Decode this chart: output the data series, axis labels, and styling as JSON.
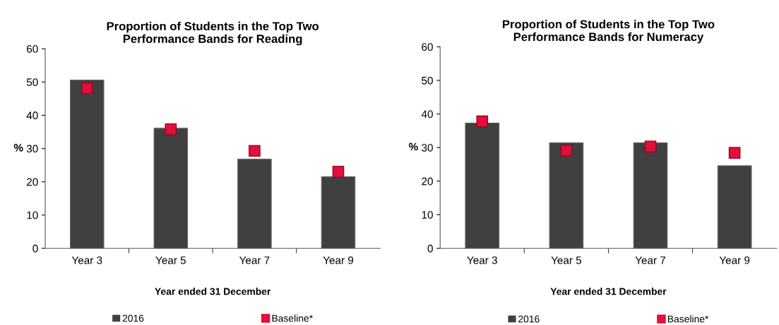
{
  "chart_data": [
    {
      "type": "bar",
      "title": "Proportion of Students in the Top Two\nPerformance Bands for Reading",
      "xlabel": "Year ended 31 December",
      "ylabel": "%",
      "categories": [
        "Year 3",
        "Year 5",
        "Year 7",
        "Year 9"
      ],
      "series": [
        {
          "name": "2016",
          "color": "#404040",
          "values": [
            50.6,
            36.1,
            26.8,
            21.5
          ]
        },
        {
          "name": "Baseline*",
          "type": "scatter",
          "color": "#e0103a",
          "values": [
            48.1,
            35.8,
            29.3,
            23.0
          ]
        }
      ],
      "ylim": [
        0,
        60
      ],
      "yticks": [
        0,
        10,
        20,
        30,
        40,
        50,
        60
      ],
      "marker": "square",
      "legend": "bottom",
      "grid": false
    },
    {
      "type": "bar",
      "title": "Proportion of Students in the Top Two\nPerformance Bands for Numeracy",
      "xlabel": "Year ended 31 December",
      "ylabel": "%",
      "categories": [
        "Year 3",
        "Year 5",
        "Year 7",
        "Year 9"
      ],
      "series": [
        {
          "name": "2016",
          "color": "#404040",
          "values": [
            37.3,
            31.4,
            31.4,
            24.6
          ]
        },
        {
          "name": "Baseline*",
          "type": "scatter",
          "color": "#e0103a",
          "values": [
            37.8,
            29.1,
            30.3,
            28.4
          ]
        }
      ],
      "ylim": [
        0,
        60
      ],
      "yticks": [
        0,
        10,
        20,
        30,
        40,
        50,
        60
      ],
      "marker": "square",
      "legend": "bottom",
      "grid": false
    }
  ]
}
